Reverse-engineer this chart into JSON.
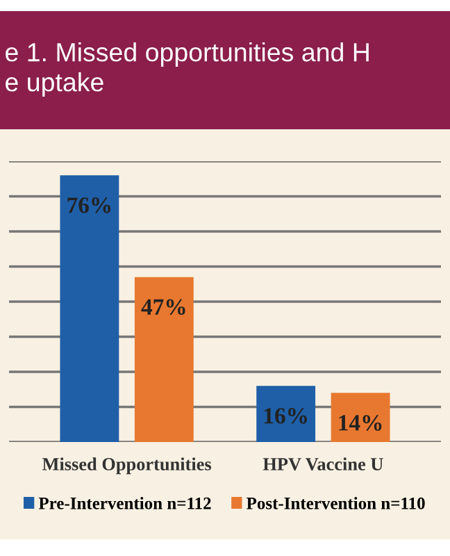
{
  "chart_data": {
    "type": "bar",
    "title": "e 1. Missed opportunities and H\ne uptake",
    "categories": [
      "Missed Opportunities",
      "HPV Vaccine U"
    ],
    "series": [
      {
        "name": "Pre-Intervention n=112",
        "color": "#1f5fa8",
        "values": [
          76,
          16
        ],
        "value_labels": [
          "76%",
          "16%"
        ]
      },
      {
        "name": "Post-Intervention n=110",
        "color": "#e8782f",
        "values": [
          47,
          14
        ],
        "value_labels": [
          "47%",
          "14%"
        ]
      }
    ],
    "ylim": [
      0,
      80
    ],
    "yticks": [
      {
        "value": 0,
        "label": null
      },
      {
        "value": 10,
        "label": null
      },
      {
        "value": 20,
        "label": null
      },
      {
        "value": 30,
        "label": null
      },
      {
        "value": 40,
        "label": null
      },
      {
        "value": 50,
        "label": null
      },
      {
        "value": 60,
        "label": null
      },
      {
        "value": 70,
        "label": null
      },
      {
        "value": 80,
        "label": null
      }
    ],
    "grid": "y",
    "legend": "bottom"
  }
}
